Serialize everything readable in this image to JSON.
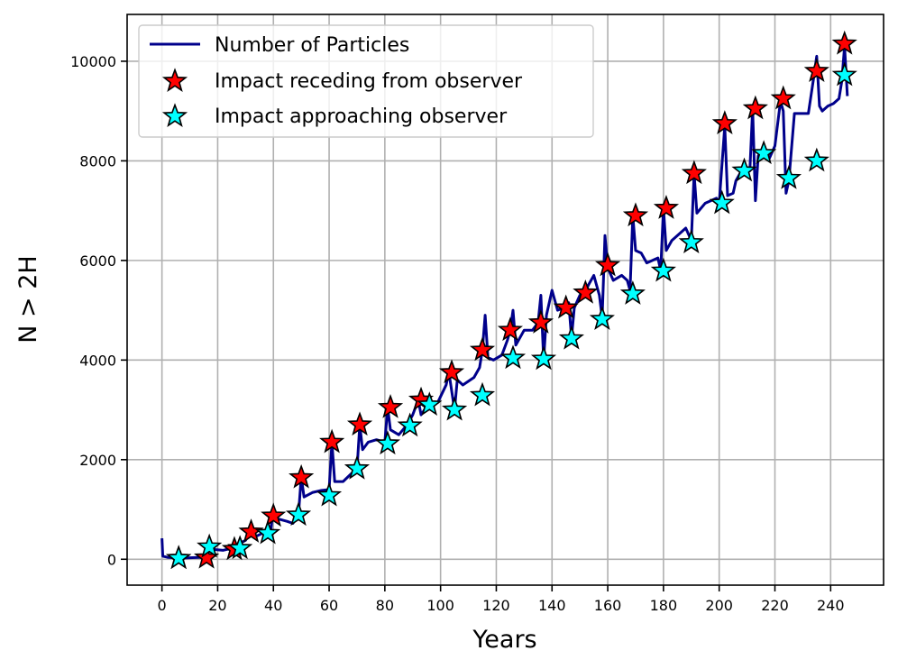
{
  "chart_data": {
    "type": "line",
    "xlabel": "Years",
    "ylabel": "N > 2H",
    "xlim": [
      -12.5,
      259
    ],
    "ylim": [
      -520,
      10940
    ],
    "xticks": [
      0,
      20,
      40,
      60,
      80,
      100,
      120,
      140,
      160,
      180,
      200,
      220,
      240
    ],
    "yticks": [
      0,
      2000,
      4000,
      6000,
      8000,
      10000
    ],
    "grid": true,
    "legend_position": "top-left",
    "series": [
      {
        "name": "Number of Particles",
        "kind": "line",
        "color": "#00008b",
        "points": [
          [
            0,
            420
          ],
          [
            0.3,
            60
          ],
          [
            2,
            40
          ],
          [
            6,
            20
          ],
          [
            10,
            30
          ],
          [
            14,
            40
          ],
          [
            16,
            50
          ],
          [
            17,
            260
          ],
          [
            18,
            200
          ],
          [
            22,
            180
          ],
          [
            25,
            220
          ],
          [
            26,
            180
          ],
          [
            28,
            320
          ],
          [
            30,
            380
          ],
          [
            32,
            560
          ],
          [
            33,
            440
          ],
          [
            36,
            520
          ],
          [
            39,
            540
          ],
          [
            40,
            1050
          ],
          [
            41,
            820
          ],
          [
            45,
            760
          ],
          [
            47,
            720
          ],
          [
            49,
            900
          ],
          [
            50,
            1650
          ],
          [
            51,
            1250
          ],
          [
            54,
            1340
          ],
          [
            57,
            1380
          ],
          [
            60,
            1400
          ],
          [
            61,
            2350
          ],
          [
            62,
            1560
          ],
          [
            65,
            1560
          ],
          [
            68,
            1720
          ],
          [
            70,
            1800
          ],
          [
            71,
            2700
          ],
          [
            72,
            2200
          ],
          [
            74,
            2350
          ],
          [
            77,
            2400
          ],
          [
            80,
            2350
          ],
          [
            81,
            3050
          ],
          [
            82,
            2600
          ],
          [
            85,
            2500
          ],
          [
            88,
            2700
          ],
          [
            90,
            2900
          ],
          [
            92,
            3200
          ],
          [
            93,
            2900
          ],
          [
            96,
            3150
          ],
          [
            99,
            3150
          ],
          [
            102,
            3500
          ],
          [
            103,
            3750
          ],
          [
            105,
            3000
          ],
          [
            106,
            3600
          ],
          [
            108,
            3500
          ],
          [
            112,
            3650
          ],
          [
            114,
            3850
          ],
          [
            115,
            4200
          ],
          [
            116,
            4900
          ],
          [
            117,
            4050
          ],
          [
            119,
            4000
          ],
          [
            122,
            4100
          ],
          [
            124,
            4400
          ],
          [
            125,
            4600
          ],
          [
            126,
            5000
          ],
          [
            127,
            4300
          ],
          [
            130,
            4600
          ],
          [
            133,
            4600
          ],
          [
            135,
            4750
          ],
          [
            136,
            5300
          ],
          [
            137,
            4000
          ],
          [
            138,
            4900
          ],
          [
            140,
            5400
          ],
          [
            142,
            5000
          ],
          [
            144,
            5050
          ],
          [
            146,
            5150
          ],
          [
            147,
            4450
          ],
          [
            148,
            5050
          ],
          [
            150,
            5300
          ],
          [
            152,
            5350
          ],
          [
            153,
            5500
          ],
          [
            155,
            5700
          ],
          [
            157,
            5300
          ],
          [
            158,
            4850
          ],
          [
            159,
            6500
          ],
          [
            160,
            5850
          ],
          [
            162,
            5600
          ],
          [
            165,
            5700
          ],
          [
            167,
            5600
          ],
          [
            168,
            5400
          ],
          [
            169,
            6900
          ],
          [
            170,
            6200
          ],
          [
            172,
            6150
          ],
          [
            174,
            5950
          ],
          [
            176,
            6000
          ],
          [
            178,
            6050
          ],
          [
            179,
            5800
          ],
          [
            180,
            7050
          ],
          [
            181,
            6200
          ],
          [
            183,
            6400
          ],
          [
            186,
            6550
          ],
          [
            188,
            6650
          ],
          [
            190,
            6400
          ],
          [
            191,
            7750
          ],
          [
            192,
            6950
          ],
          [
            195,
            7150
          ],
          [
            197,
            7200
          ],
          [
            199,
            7250
          ],
          [
            200,
            7150
          ],
          [
            202,
            8700
          ],
          [
            203,
            7300
          ],
          [
            205,
            7350
          ],
          [
            206,
            7600
          ],
          [
            208,
            7800
          ],
          [
            209,
            7850
          ],
          [
            211,
            7800
          ],
          [
            212,
            9050
          ],
          [
            213,
            7200
          ],
          [
            214,
            8100
          ],
          [
            216,
            8150
          ],
          [
            218,
            8050
          ],
          [
            220,
            8300
          ],
          [
            222,
            9200
          ],
          [
            223,
            9000
          ],
          [
            224,
            7350
          ],
          [
            225,
            7600
          ],
          [
            227,
            8950
          ],
          [
            229,
            8950
          ],
          [
            232,
            8950
          ],
          [
            234,
            9700
          ],
          [
            235,
            10100
          ],
          [
            236,
            9100
          ],
          [
            237,
            9000
          ],
          [
            239,
            9100
          ],
          [
            241,
            9150
          ],
          [
            243,
            9250
          ],
          [
            244,
            9600
          ],
          [
            245,
            10300
          ],
          [
            246,
            9300
          ]
        ]
      },
      {
        "name": "Impact receding from observer",
        "kind": "scatter",
        "marker": "star",
        "color": "#ff0000",
        "points": [
          [
            6,
            20
          ],
          [
            16,
            30
          ],
          [
            26,
            200
          ],
          [
            32,
            550
          ],
          [
            40,
            870
          ],
          [
            50,
            1640
          ],
          [
            61,
            2350
          ],
          [
            71,
            2700
          ],
          [
            82,
            3050
          ],
          [
            93,
            3200
          ],
          [
            104,
            3750
          ],
          [
            115,
            4200
          ],
          [
            125,
            4600
          ],
          [
            136,
            4750
          ],
          [
            145,
            5050
          ],
          [
            152,
            5350
          ],
          [
            160,
            5900
          ],
          [
            170,
            6900
          ],
          [
            181,
            7050
          ],
          [
            191,
            7750
          ],
          [
            202,
            8750
          ],
          [
            213,
            9050
          ],
          [
            223,
            9250
          ],
          [
            235,
            9800
          ],
          [
            245,
            10350
          ]
        ]
      },
      {
        "name": "Impact approaching observer",
        "kind": "scatter",
        "marker": "star",
        "color": "#00ffff",
        "points": [
          [
            6,
            20
          ],
          [
            17,
            250
          ],
          [
            28,
            220
          ],
          [
            38,
            520
          ],
          [
            49,
            890
          ],
          [
            60,
            1280
          ],
          [
            70,
            1820
          ],
          [
            81,
            2320
          ],
          [
            89,
            2680
          ],
          [
            96,
            3100
          ],
          [
            105,
            3000
          ],
          [
            115,
            3290
          ],
          [
            126,
            4040
          ],
          [
            137,
            4020
          ],
          [
            147,
            4430
          ],
          [
            158,
            4820
          ],
          [
            169,
            5330
          ],
          [
            180,
            5790
          ],
          [
            190,
            6360
          ],
          [
            201,
            7150
          ],
          [
            209,
            7800
          ],
          [
            216,
            8150
          ],
          [
            225,
            7650
          ],
          [
            235,
            8000
          ],
          [
            245,
            9720
          ]
        ]
      }
    ]
  }
}
